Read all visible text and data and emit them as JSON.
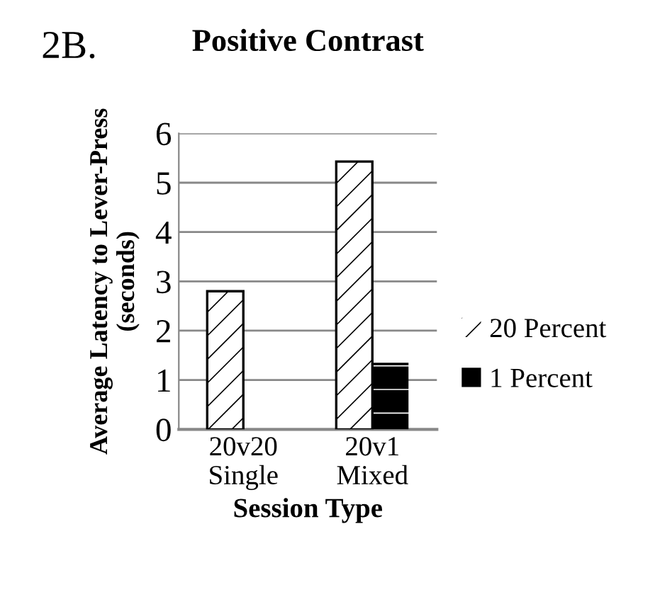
{
  "chart_data": {
    "type": "bar",
    "title": "Positive Contrast",
    "xlabel": "Session Type",
    "ylabel": "Average Latency to Lever-Press\n(seconds)",
    "annotations": [
      "2B."
    ],
    "categories": [
      "20v20\nSingle",
      "20v1\nMixed"
    ],
    "series": [
      {
        "name": "20 Percent",
        "color": "#ffffff",
        "values": [
          2.8,
          5.43
        ]
      },
      {
        "name": "1 Percent",
        "color": "#000000",
        "values": [
          null,
          1.35
        ]
      }
    ],
    "ylim": [
      0,
      6
    ],
    "yticks": [
      0,
      1,
      2,
      3,
      4,
      5,
      6
    ],
    "grid": "y",
    "legend": "right"
  }
}
